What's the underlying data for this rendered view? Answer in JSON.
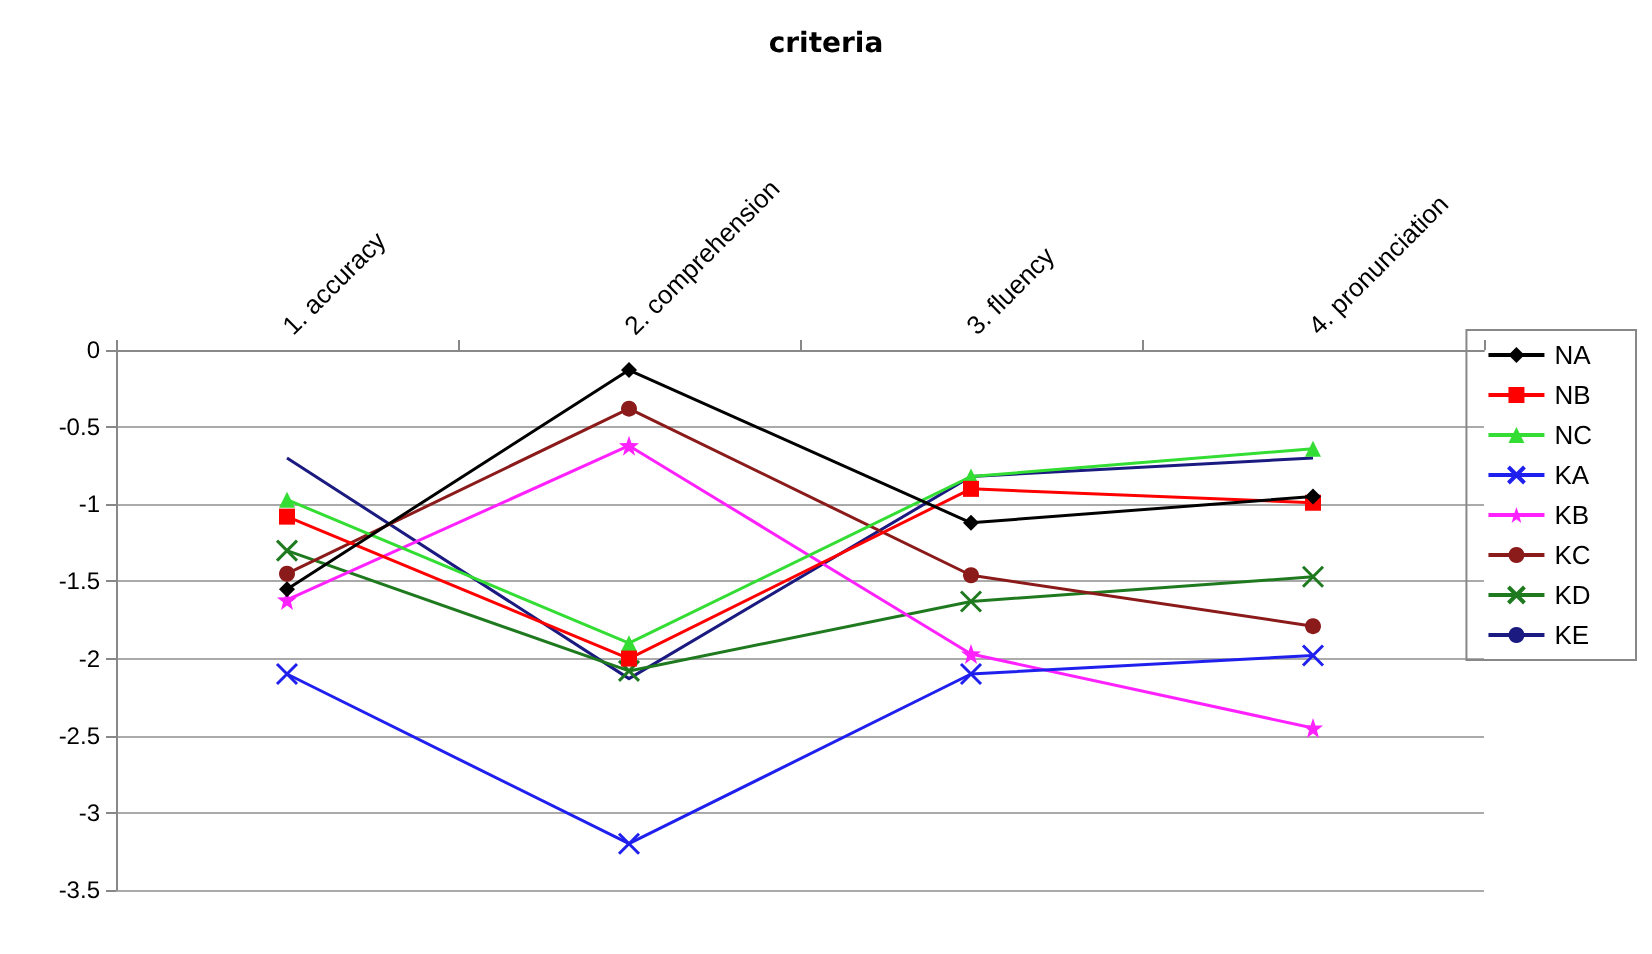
{
  "chart_data": {
    "type": "line",
    "title": "criteria",
    "categories": [
      "1. accuracy",
      "2. comprehension",
      "3. fluency",
      "4. pronunciation"
    ],
    "series": [
      {
        "name": "NA",
        "color": "#000000",
        "marker": "diamond",
        "values": [
          -1.55,
          -0.13,
          -1.12,
          -0.95
        ]
      },
      {
        "name": "NB",
        "color": "#ff0000",
        "marker": "square",
        "values": [
          -1.08,
          -2.0,
          -0.9,
          -0.99
        ]
      },
      {
        "name": "NC",
        "color": "#33dd33",
        "marker": "triangle",
        "values": [
          -0.97,
          -1.9,
          -0.82,
          -0.64
        ]
      },
      {
        "name": "KA",
        "color": "#2020ee",
        "marker": "cross",
        "values": [
          -2.1,
          -3.2,
          -2.1,
          -1.98
        ]
      },
      {
        "name": "KB",
        "color": "#ff22ff",
        "marker": "star",
        "values": [
          -1.62,
          -0.62,
          -1.97,
          -2.45
        ]
      },
      {
        "name": "KC",
        "color": "#8b1a1a",
        "marker": "circle",
        "values": [
          -1.45,
          -0.38,
          -1.46,
          -1.79
        ]
      },
      {
        "name": "KD",
        "color": "#1f7a1f",
        "marker": "cross",
        "values": [
          -1.3,
          -2.08,
          -1.63,
          -1.47
        ]
      },
      {
        "name": "KE",
        "color": "#1a1a80",
        "marker": "none",
        "values": [
          -0.7,
          -2.13,
          -0.82,
          -0.7
        ]
      }
    ],
    "ylim": [
      -3.5,
      0
    ],
    "yticks": [
      -3.5,
      -3,
      -2.5,
      -2,
      -1.5,
      -1,
      -0.5,
      0
    ],
    "grid": "y",
    "legend": "right"
  }
}
